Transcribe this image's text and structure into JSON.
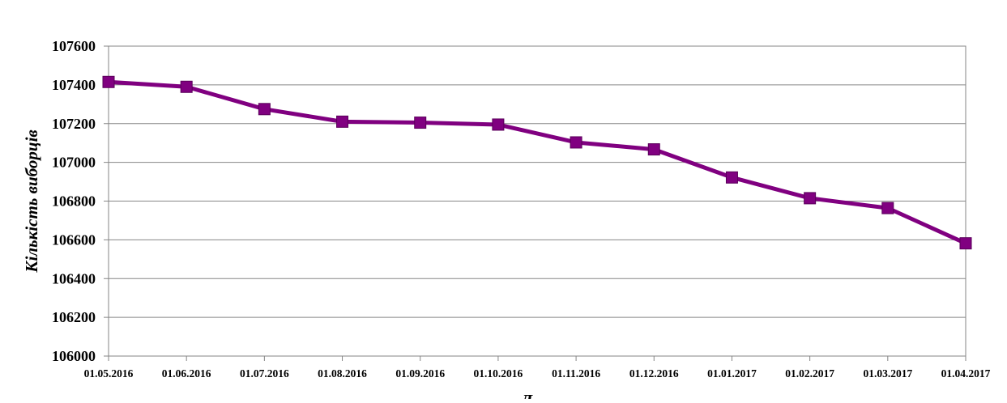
{
  "chart_data": {
    "type": "line",
    "title": "",
    "xlabel": "Д",
    "ylabel": "Кількість виборців",
    "categories": [
      "01.05.2016",
      "01.06.2016",
      "01.07.2016",
      "01.08.2016",
      "01.09.2016",
      "01.10.2016",
      "01.11.2016",
      "01.12.2016",
      "01.01.2017",
      "01.02.2017",
      "01.03.2017",
      "01.04.2017"
    ],
    "series": [
      {
        "values": [
          107415,
          107390,
          107275,
          107210,
          107205,
          107195,
          107103,
          107067,
          106922,
          106815,
          106764,
          106582
        ],
        "color": "#800080"
      }
    ],
    "ylim": [
      106000,
      107600
    ],
    "yticks": [
      106000,
      106200,
      106400,
      106600,
      106800,
      107000,
      107200,
      107400,
      107600
    ],
    "grid": true,
    "legend": "none",
    "marker": "square"
  }
}
